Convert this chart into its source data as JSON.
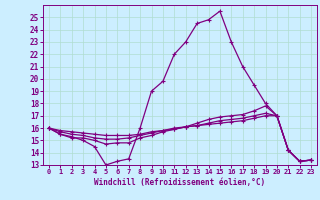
{
  "xlabel": "Windchill (Refroidissement éolien,°C)",
  "background_color": "#cceeff",
  "line_color": "#800080",
  "x_values": [
    0,
    1,
    2,
    3,
    4,
    5,
    6,
    7,
    8,
    9,
    10,
    11,
    12,
    13,
    14,
    15,
    16,
    17,
    18,
    19,
    20,
    21,
    22,
    23
  ],
  "line1": [
    16.0,
    15.5,
    15.3,
    15.0,
    14.5,
    13.0,
    13.3,
    13.5,
    16.0,
    19.0,
    19.8,
    22.0,
    23.0,
    24.5,
    24.8,
    25.5,
    23.0,
    21.0,
    19.5,
    18.0,
    17.0,
    14.2,
    13.3,
    13.4
  ],
  "line2": [
    16.0,
    15.5,
    15.2,
    15.2,
    15.0,
    14.7,
    14.8,
    14.8,
    15.2,
    15.4,
    15.7,
    15.9,
    16.1,
    16.4,
    16.7,
    16.9,
    17.0,
    17.1,
    17.4,
    17.8,
    17.0,
    14.2,
    13.3,
    13.4
  ],
  "line3": [
    16.0,
    15.7,
    15.5,
    15.4,
    15.2,
    15.1,
    15.1,
    15.2,
    15.4,
    15.6,
    15.8,
    15.9,
    16.1,
    16.2,
    16.4,
    16.6,
    16.7,
    16.8,
    17.0,
    17.2,
    17.0,
    14.2,
    13.3,
    13.4
  ],
  "line4": [
    16.0,
    15.8,
    15.7,
    15.6,
    15.5,
    15.4,
    15.4,
    15.4,
    15.5,
    15.7,
    15.8,
    16.0,
    16.1,
    16.2,
    16.3,
    16.4,
    16.5,
    16.6,
    16.8,
    17.0,
    17.0,
    14.2,
    13.3,
    13.4
  ],
  "ylim": [
    13,
    26
  ],
  "xlim_min": -0.5,
  "xlim_max": 23.5,
  "yticks": [
    13,
    14,
    15,
    16,
    17,
    18,
    19,
    20,
    21,
    22,
    23,
    24,
    25
  ],
  "xticks": [
    0,
    1,
    2,
    3,
    4,
    5,
    6,
    7,
    8,
    9,
    10,
    11,
    12,
    13,
    14,
    15,
    16,
    17,
    18,
    19,
    20,
    21,
    22,
    23
  ],
  "grid_color": "#b0ddd0",
  "marker": "+"
}
